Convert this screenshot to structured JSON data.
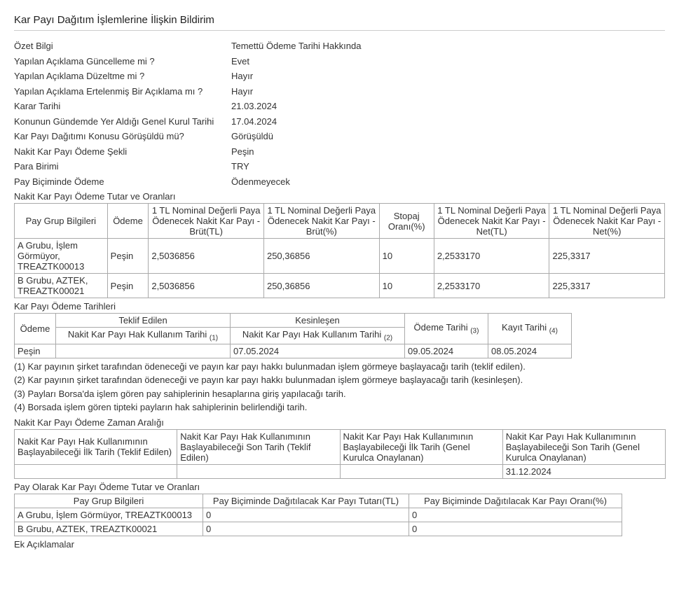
{
  "title": "Kar Payı Dağıtım İşlemlerine İlişkin Bildirim",
  "summary": {
    "rows": [
      {
        "label": "Özet Bilgi",
        "value": "Temettü Ödeme Tarihi Hakkında"
      },
      {
        "label": "Yapılan Açıklama Güncelleme mi ?",
        "value": "Evet"
      },
      {
        "label": "Yapılan Açıklama Düzeltme mi ?",
        "value": "Hayır"
      },
      {
        "label": "Yapılan Açıklama Ertelenmiş Bir Açıklama mı ?",
        "value": "Hayır"
      },
      {
        "label": "Karar Tarihi",
        "value": "21.03.2024"
      },
      {
        "label": "Konunun Gündemde Yer Aldığı Genel Kurul Tarihi",
        "value": "17.04.2024"
      },
      {
        "label": "Kar Payı Dağıtımı Konusu Görüşüldü mü?",
        "value": "Görüşüldü"
      },
      {
        "label": "Nakit Kar Payı Ödeme Şekli",
        "value": "Peşin"
      },
      {
        "label": "Para Birimi",
        "value": "TRY"
      },
      {
        "label": "Pay Biçiminde Ödeme",
        "value": "Ödenmeyecek"
      }
    ]
  },
  "cash_dividend": {
    "section_label": "Nakit Kar Payı Ödeme Tutar ve Oranları",
    "headers": {
      "c0": "Pay Grup Bilgileri",
      "c1": "Ödeme",
      "c2": "1 TL Nominal Değerli Paya Ödenecek Nakit Kar Payı - Brüt(TL)",
      "c3": "1 TL Nominal Değerli Paya Ödenecek Nakit Kar Payı - Brüt(%)",
      "c4": "Stopaj Oranı(%)",
      "c5": "1 TL Nominal Değerli Paya Ödenecek Nakit Kar Payı - Net(TL)",
      "c6": "1 TL Nominal Değerli Paya Ödenecek Nakit Kar Payı - Net(%)"
    },
    "rows": [
      {
        "c0": "A Grubu, İşlem Görmüyor, TREAZTK00013",
        "c1": "Peşin",
        "c2": "2,5036856",
        "c3": "250,36856",
        "c4": "10",
        "c5": "2,2533170",
        "c6": "225,3317"
      },
      {
        "c0": "B Grubu, AZTEK, TREAZTK00021",
        "c1": "Peşin",
        "c2": "2,5036856",
        "c3": "250,36856",
        "c4": "10",
        "c5": "2,2533170",
        "c6": "225,3317"
      }
    ],
    "col_widths": [
      "125px",
      "50px",
      "160px",
      "160px",
      "70px",
      "160px",
      "160px"
    ]
  },
  "payment_dates": {
    "section_label": "Kar Payı Ödeme Tarihleri",
    "headers": {
      "c0": "Ödeme",
      "c1_top": "Teklif Edilen",
      "c1_bot": "Nakit Kar Payı Hak Kullanım Tarihi",
      "c1_sub": "(1)",
      "c2_top": "Kesinleşen",
      "c2_bot": "Nakit Kar Payı Hak Kullanım Tarihi",
      "c2_sub": "(2)",
      "c3": "Ödeme Tarihi",
      "c3_sub": "(3)",
      "c4": "Kayıt Tarihi",
      "c4_sub": "(4)"
    },
    "rows": [
      {
        "c0": "Peşin",
        "c1": "",
        "c2": "07.05.2024",
        "c3": "09.05.2024",
        "c4": "08.05.2024"
      }
    ]
  },
  "footnotes": {
    "n1": "(1) Kar payının şirket tarafından ödeneceği ve payın kar payı hakkı bulunmadan işlem görmeye başlayacağı tarih (teklif edilen).",
    "n2": "(2) Kar payının şirket tarafından ödeneceği ve payın kar payı hakkı bulunmadan işlem görmeye başlayacağı tarih (kesinleşen).",
    "n3": "(3) Payları Borsa'da işlem gören pay sahiplerinin hesaplarına giriş yapılacağı tarih.",
    "n4": "(4) Borsada işlem gören tipteki payların hak sahiplerinin belirlendiği tarih."
  },
  "payment_range": {
    "section_label": "Nakit Kar Payı Ödeme Zaman Aralığı",
    "headers": {
      "c0": "Nakit Kar Payı Hak Kullanımının Başlayabileceği İlk Tarih (Teklif Edilen)",
      "c1": "Nakit Kar Payı Hak Kullanımının Başlayabileceği Son Tarih (Teklif Edilen)",
      "c2": "Nakit Kar Payı Hak Kullanımının Başlayabileceği İlk Tarih (Genel Kurulca Onaylanan)",
      "c3": "Nakit Kar Payı Hak Kullanımının Başlayabileceği Son Tarih (Genel Kurulca Onaylanan)"
    },
    "rows": [
      {
        "c0": "",
        "c1": "",
        "c2": "",
        "c3": "31.12.2024"
      }
    ]
  },
  "share_dividend": {
    "section_label": "Pay Olarak Kar Payı Ödeme Tutar ve Oranları",
    "headers": {
      "c0": "Pay Grup Bilgileri",
      "c1": "Pay Biçiminde Dağıtılacak Kar Payı Tutarı(TL)",
      "c2": "Pay Biçiminde Dağıtılacak Kar Payı Oranı(%)"
    },
    "rows": [
      {
        "c0": "A Grubu, İşlem Görmüyor, TREAZTK00013",
        "c1": "0",
        "c2": "0"
      },
      {
        "c0": "B Grubu, AZTEK, TREAZTK00021",
        "c1": "0",
        "c2": "0"
      }
    ]
  },
  "extra_notes_label": "Ek Açıklamalar"
}
